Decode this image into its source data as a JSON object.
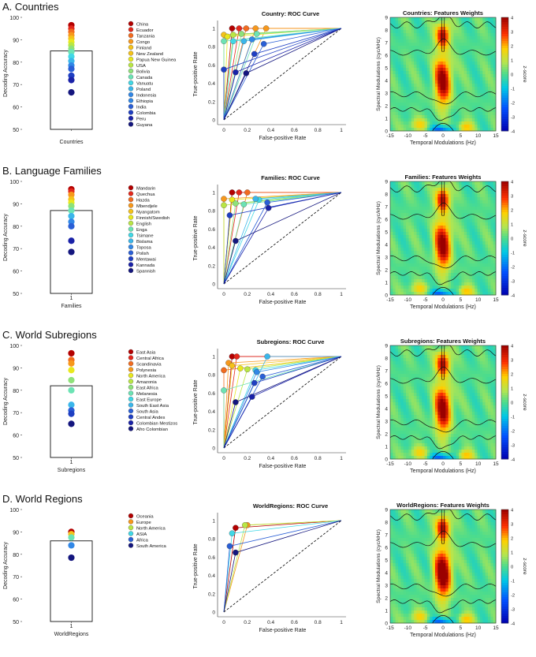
{
  "colors": [
    "#b30000",
    "#e3281c",
    "#f26b1f",
    "#f7981c",
    "#f5c21a",
    "#e8e81e",
    "#b9e645",
    "#8fe27a",
    "#6ce3b4",
    "#40d8e6",
    "#3bb6ea",
    "#3187e6",
    "#2a5fd6",
    "#1f3fc2",
    "#1a22a8",
    "#14167e"
  ],
  "rocColors": {
    "diagonal": "#000000",
    "spine": "#1a1a1a"
  },
  "heatmap": {
    "xlabel": "Temporal Modulations (Hz)",
    "ylabel": "Spectral Modulations (cyc/kHz)",
    "cbarLabel": "z-score",
    "xticks": [
      "-15",
      "-10",
      "-5",
      "0",
      "5",
      "10",
      "15"
    ],
    "yticks": [
      "0",
      "1",
      "2",
      "3",
      "4",
      "5",
      "6",
      "7",
      "8",
      "9"
    ],
    "cbarTicks": [
      "4",
      "3",
      "2",
      "1",
      "0",
      "-1",
      "-2",
      "-3",
      "-4"
    ]
  },
  "roc": {
    "xlabel": "False-positive Rate",
    "ylabel": "True-positive Rate",
    "ticks": [
      "0",
      "0.2",
      "0.4",
      "0.6",
      "0.8",
      "1"
    ]
  },
  "bar": {
    "ylabel": "Decoding Accuracy",
    "yticks": [
      "100",
      "90",
      "80",
      "70",
      "60",
      "50"
    ]
  },
  "chart_data": [
    {
      "type": "bar",
      "panel": "A",
      "section_title": "A. Countries",
      "category_label": "Countries",
      "tick_label": "",
      "bar_value": 85,
      "ylim": [
        50,
        100
      ],
      "points": [
        96.5,
        95,
        93.5,
        92,
        90.5,
        89,
        87.5,
        86,
        84.5,
        82.5,
        80.5,
        78.5,
        77,
        74,
        72,
        66.5
      ],
      "legend": [
        "China",
        "Ecuador",
        "Tanzania",
        "Congo",
        "Finland",
        "New Zealand",
        "Papua New Guinea",
        "USA",
        "Bolivia",
        "Canada",
        "Vanuatu",
        "Poland",
        "Indonesia",
        "Ethiopia",
        "India",
        "Colombia",
        "Peru",
        "Guyana"
      ],
      "roc_title": "Country: ROC Curve",
      "roc_points": [
        [
          0.07,
          1.0
        ],
        [
          0.13,
          1.0
        ],
        [
          0.19,
          1.0
        ],
        [
          0.27,
          1.0
        ],
        [
          0.36,
          1.0
        ],
        [
          0.0,
          0.93
        ],
        [
          0.03,
          0.91
        ],
        [
          0.08,
          0.93
        ],
        [
          0.15,
          0.94
        ],
        [
          0.28,
          0.94
        ],
        [
          0.0,
          0.86
        ],
        [
          0.08,
          0.86
        ],
        [
          0.17,
          0.86
        ],
        [
          0.24,
          0.88
        ],
        [
          0.34,
          0.83
        ],
        [
          0.26,
          0.72
        ],
        [
          0.0,
          0.55
        ],
        [
          0.1,
          0.52
        ],
        [
          0.19,
          0.51
        ]
      ],
      "heat_title": "Countries: Features Weights"
    },
    {
      "type": "bar",
      "panel": "B",
      "section_title": "B. Language Families",
      "category_label": "Families",
      "tick_label": "1",
      "bar_value": 87,
      "ylim": [
        50,
        100
      ],
      "points": [
        96.5,
        95.5,
        94,
        92,
        90.5,
        89,
        87,
        84.5,
        82,
        80,
        73.5,
        68.5
      ],
      "legend": [
        "Mandarin",
        "Quechua",
        "Hazda",
        "Mbendjele",
        "Nyangatom",
        "Finnish/Swedish",
        "English",
        "Enga",
        "Tsimane",
        "Bislama",
        "Toposa",
        "Polish",
        "Mentawai",
        "Kannada",
        "Spannish"
      ],
      "roc_title": "Families: ROC Curve",
      "roc_points": [
        [
          0.07,
          1.0
        ],
        [
          0.13,
          1.0
        ],
        [
          0.2,
          1.0
        ],
        [
          0.0,
          0.93
        ],
        [
          0.07,
          0.92
        ],
        [
          0.0,
          0.86
        ],
        [
          0.1,
          0.88
        ],
        [
          0.17,
          0.87
        ],
        [
          0.3,
          0.92
        ],
        [
          0.27,
          0.93
        ],
        [
          0.37,
          0.89
        ],
        [
          0.05,
          0.75
        ],
        [
          0.38,
          0.83
        ],
        [
          0.1,
          0.47
        ]
      ],
      "heat_title": "Families: Features Weights"
    },
    {
      "type": "bar",
      "panel": "C",
      "section_title": "C. World Subregions",
      "category_label": "Subregions",
      "tick_label": "1",
      "bar_value": 82,
      "ylim": [
        50,
        100
      ],
      "points": [
        96.5,
        93.5,
        92,
        89,
        84.5,
        80,
        73.5,
        71,
        69.5,
        65
      ],
      "legend": [
        "East Asia",
        "Central Africa",
        "Scandinavia",
        "Polynesia",
        "North America",
        "Amazonia",
        "East Africa",
        "Melanesia",
        "East Europe",
        "South East Asia",
        "South Asia",
        "Central Andes",
        "Colombian Mestizos",
        "Afro Colombian"
      ],
      "roc_title": "Subregions: ROC Curve",
      "roc_points": [
        [
          0.07,
          1.0
        ],
        [
          0.11,
          1.0
        ],
        [
          0.0,
          0.85
        ],
        [
          0.04,
          0.93
        ],
        [
          0.07,
          0.9
        ],
        [
          0.14,
          0.87
        ],
        [
          0.2,
          0.86
        ],
        [
          0.0,
          0.63
        ],
        [
          0.27,
          0.85
        ],
        [
          0.37,
          1.0
        ],
        [
          0.28,
          0.83
        ],
        [
          0.33,
          0.78
        ],
        [
          0.26,
          0.71
        ],
        [
          0.24,
          0.56
        ],
        [
          0.1,
          0.5
        ]
      ],
      "heat_title": "Subregions: Features Weights"
    },
    {
      "type": "bar",
      "panel": "D",
      "section_title": "D. World Regions",
      "category_label": "WorldRegions",
      "tick_label": "1",
      "bar_value": 86,
      "ylim": [
        50,
        100
      ],
      "points": [
        90,
        89,
        87.5,
        84,
        78.5
      ],
      "legend": [
        "Oceania",
        "Europe",
        "North America",
        "ASIA",
        "Africa",
        "South America"
      ],
      "roc_title": "WorldRegions: ROC Curve",
      "roc_points": [
        [
          0.1,
          0.92
        ],
        [
          0.2,
          0.95
        ],
        [
          0.18,
          0.95
        ],
        [
          0.07,
          0.86
        ],
        [
          0.05,
          0.72
        ],
        [
          0.1,
          0.65
        ]
      ],
      "heat_title": "WorldRegions: Features Weights"
    }
  ]
}
